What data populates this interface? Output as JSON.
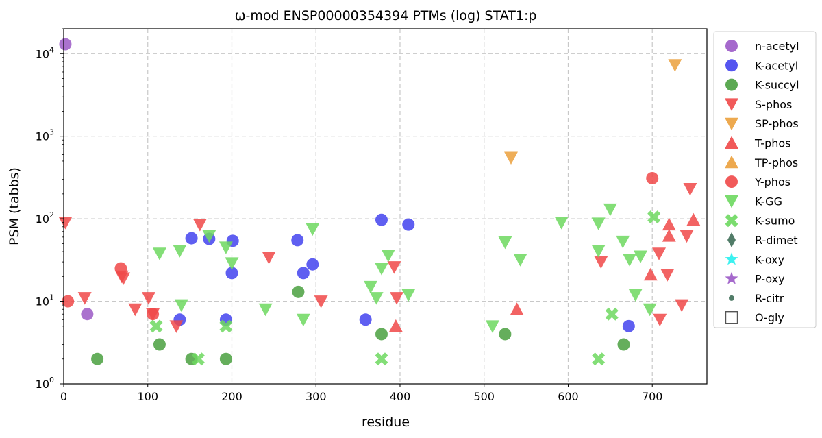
{
  "chart_data": {
    "type": "scatter",
    "title": "ω-mod ENSP00000354394 PTMs (log) STAT1:p",
    "xlabel": "residue",
    "ylabel": "PSM (tabbs)",
    "xlim": [
      0,
      765
    ],
    "ylim": [
      1,
      20000
    ],
    "yscale": "log",
    "grid": true,
    "legend_position": "outside-right",
    "x_ticks": [
      "0",
      "100",
      "200",
      "300",
      "400",
      "500",
      "600",
      "700"
    ],
    "y_ticks": [
      {
        "value": 1,
        "base": "10",
        "exp": "0"
      },
      {
        "value": 10,
        "base": "10",
        "exp": "1"
      },
      {
        "value": 100,
        "base": "10",
        "exp": "2"
      },
      {
        "value": 1000,
        "base": "10",
        "exp": "3"
      },
      {
        "value": 10000,
        "base": "10",
        "exp": "4"
      }
    ],
    "series": [
      {
        "name": "n-acetyl",
        "marker": "circle",
        "color": "#9b59c6",
        "points": [
          [
            2,
            13000
          ],
          [
            28,
            7
          ]
        ]
      },
      {
        "name": "K-acetyl",
        "marker": "circle",
        "color": "#4343ee",
        "points": [
          [
            138,
            6
          ],
          [
            152,
            58
          ],
          [
            173,
            57
          ],
          [
            193,
            6
          ],
          [
            200,
            22
          ],
          [
            201,
            54
          ],
          [
            278,
            55
          ],
          [
            285,
            22
          ],
          [
            296,
            28
          ],
          [
            359,
            6
          ],
          [
            378,
            97
          ],
          [
            410,
            85
          ],
          [
            672,
            5
          ]
        ]
      },
      {
        "name": "K-succyl",
        "marker": "circle",
        "color": "#4aa040",
        "points": [
          [
            40,
            2
          ],
          [
            114,
            3
          ],
          [
            152,
            2
          ],
          [
            193,
            2
          ],
          [
            279,
            13
          ],
          [
            378,
            4
          ],
          [
            525,
            4
          ],
          [
            666,
            3
          ]
        ]
      },
      {
        "name": "S-phos",
        "marker": "triangle-down",
        "color": "#f04848",
        "points": [
          [
            2,
            90
          ],
          [
            25,
            11
          ],
          [
            69,
            20
          ],
          [
            71,
            19
          ],
          [
            85,
            8
          ],
          [
            101,
            11
          ],
          [
            106,
            7
          ],
          [
            134,
            5
          ],
          [
            162,
            85
          ],
          [
            244,
            34
          ],
          [
            306,
            10
          ],
          [
            393,
            26
          ],
          [
            396,
            11
          ],
          [
            639,
            30
          ],
          [
            708,
            38
          ],
          [
            709,
            6
          ],
          [
            718,
            21
          ],
          [
            735,
            9
          ],
          [
            741,
            62
          ],
          [
            745,
            230
          ]
        ]
      },
      {
        "name": "SP-phos",
        "marker": "triangle-down",
        "color": "#eba03c",
        "points": [
          [
            532,
            550
          ],
          [
            727,
            7300
          ]
        ]
      },
      {
        "name": "T-phos",
        "marker": "triangle-up",
        "color": "#f04848",
        "points": [
          [
            395,
            5
          ],
          [
            539,
            8
          ],
          [
            698,
            21
          ],
          [
            720,
            85
          ],
          [
            720,
            62
          ],
          [
            749,
            97
          ]
        ]
      },
      {
        "name": "TP-phos",
        "marker": "triangle-up",
        "color": "#eba03c",
        "points": []
      },
      {
        "name": "Y-phos",
        "marker": "circle",
        "color": "#f04848",
        "points": [
          [
            5,
            10
          ],
          [
            68,
            25
          ],
          [
            106,
            7
          ],
          [
            700,
            310
          ]
        ]
      },
      {
        "name": "K-GG",
        "marker": "triangle-down",
        "color": "#6dd85f",
        "points": [
          [
            114,
            38
          ],
          [
            138,
            41
          ],
          [
            140,
            9
          ],
          [
            173,
            62
          ],
          [
            193,
            45
          ],
          [
            200,
            29
          ],
          [
            240,
            8
          ],
          [
            285,
            6
          ],
          [
            296,
            75
          ],
          [
            365,
            15
          ],
          [
            372,
            11
          ],
          [
            378,
            25
          ],
          [
            386,
            36
          ],
          [
            410,
            12
          ],
          [
            510,
            5
          ],
          [
            525,
            52
          ],
          [
            543,
            32
          ],
          [
            592,
            90
          ],
          [
            636,
            41
          ],
          [
            636,
            88
          ],
          [
            650,
            130
          ],
          [
            665,
            53
          ],
          [
            673,
            32
          ],
          [
            680,
            12
          ],
          [
            686,
            35
          ],
          [
            697,
            8
          ]
        ]
      },
      {
        "name": "K-sumo",
        "marker": "x",
        "color": "#6dd85f",
        "points": [
          [
            110,
            5
          ],
          [
            160,
            2
          ],
          [
            193,
            5
          ],
          [
            378,
            2
          ],
          [
            636,
            2
          ],
          [
            652,
            7
          ],
          [
            702,
            105
          ]
        ]
      },
      {
        "name": "R-dimet",
        "marker": "diamond",
        "color": "#3e6e58",
        "points": []
      },
      {
        "name": "K-oxy",
        "marker": "star",
        "color": "#26f0ee",
        "points": []
      },
      {
        "name": "P-oxy",
        "marker": "star",
        "color": "#9b59c6",
        "points": []
      },
      {
        "name": "R-citr",
        "marker": "small-circle",
        "color": "#3e6e58",
        "points": []
      },
      {
        "name": "O-gly",
        "marker": "square-open",
        "color": "#555555",
        "points": []
      }
    ]
  }
}
